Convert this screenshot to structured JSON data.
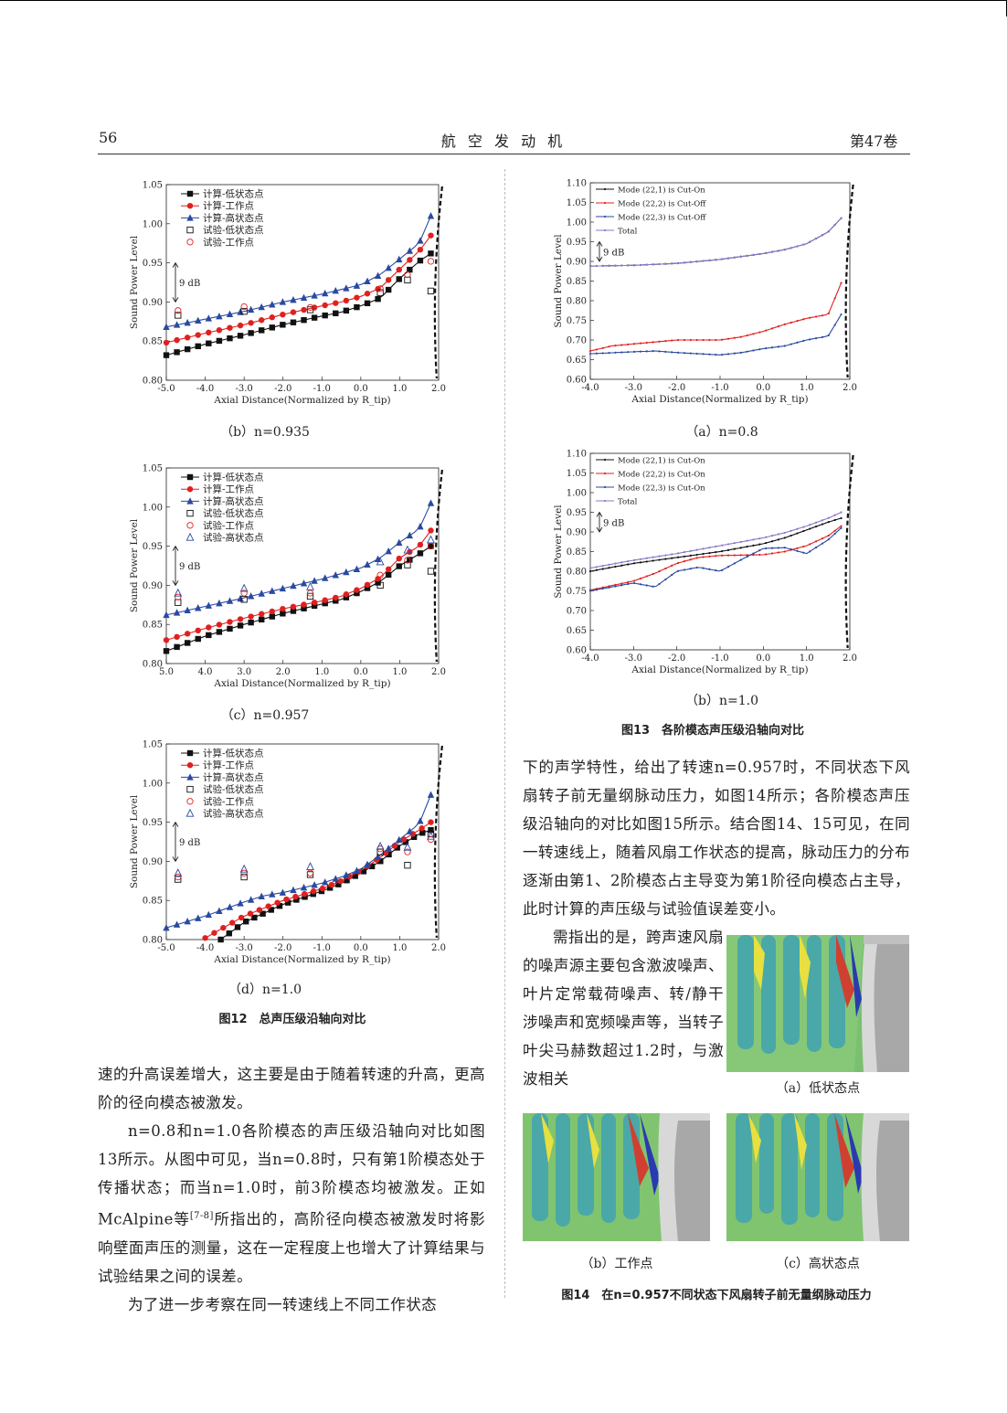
{
  "header": {
    "page_number": "56",
    "journal": "航 空 发 动 机",
    "volume": "第47卷"
  },
  "fig12": {
    "title": "图12　总声压级沿轴向对比",
    "subplots": [
      {
        "caption": "（b）n=0.935",
        "legend": [
          "计算-低状态点",
          "计算-工作点",
          "计算-高状态点",
          "试验-低状态点",
          "试验-工作点"
        ]
      },
      {
        "caption": "（c）n=0.957",
        "legend": [
          "计算-低状态点",
          "计算-工作点",
          "计算-高状态点",
          "试验-低状态点",
          "试验-工作点",
          "试验-高状态点"
        ]
      },
      {
        "caption": "（d）n=1.0",
        "legend": [
          "计算-低状态点",
          "计算-工作点",
          "计算-高状态点",
          "试验-低状态点",
          "试验-工作点",
          "试验-高状态点"
        ]
      }
    ],
    "xlabel": "Axial Distance(Normalized by R_tip)",
    "ylabel": "Sound Power Level",
    "db_note": "9 dB"
  },
  "fig13": {
    "title": "图13　各阶模态声压级沿轴向对比",
    "subplots": [
      {
        "caption": "（a）n=0.8",
        "legend": [
          "Mode (22,1) is Cut-On",
          "Mode (22,2) is Cut-Off",
          "Mode (22,3) is Cut-Off",
          "Total"
        ]
      },
      {
        "caption": "（b）n=1.0",
        "legend": [
          "Mode (22,1) is Cut-On",
          "Mode (22,2) is Cut-On",
          "Mode (22,3) is Cut-On",
          "Total"
        ]
      }
    ],
    "xlabel": "Axial Distance(Normalized by R_tip)",
    "ylabel": "Sound Power Level",
    "db_note": "9 dB"
  },
  "fig14": {
    "title": "图14　在n=0.957不同状态下风扇转子前无量纲脉动压力",
    "panels": [
      "（a）低状态点",
      "（b）工作点",
      "（c）高状态点"
    ]
  },
  "text": {
    "left_1": "速的升高误差增大，这主要是由于随着转速的升高，更高阶的径向模态被激发。",
    "left_2a": "n=0.8和n=1.0各阶模态的声压级沿轴向对比如图13所示。从图中可见，当n=0.8时，只有第1阶模态处于传播状态；而当n=1.0时，前3阶模态均被激发。正如McAlpine等",
    "left_2ref": "[7-8]",
    "left_2b": "所指出的，高阶径向模态被激发时将影响壁面声压的测量，这在一定程度上也增大了计算结果与试验结果之间的误差。",
    "left_3": "为了进一步考察在同一转速线上不同工作状态",
    "right_1": "下的声学特性，给出了转速n=0.957时，不同状态下风扇转子前无量纲脉动压力，如图14所示；各阶模态声压级沿轴向的对比如图15所示。结合图14、15可见，在同一转速线上，随着风扇工作状态的提高，脉动压力的分布逐渐由第1、2阶模态占主导变为第1阶径向模态占主导，此时计算的声压级与试验值误差变小。",
    "right_2": "需指出的是，跨声速风扇的噪声源主要包含激波噪声、叶片定常载荷噪声、转/静干涉噪声和宽频噪声等，当转子叶尖马赫数超过1.2时，与激波相关"
  },
  "colors": {
    "low": "#111111",
    "work": "#e02020",
    "high": "#2a4aa0",
    "total": "#8a78c8"
  },
  "chart_data": [
    {
      "id": "fig12b",
      "type": "line",
      "xlim": [
        -5.0,
        2.0
      ],
      "ylim": [
        0.8,
        1.05
      ],
      "xticks": [
        "-5.0",
        "-4.0",
        "-3.0",
        "-2.0",
        "-1.0",
        "0.0",
        "1.0",
        "2.0"
      ],
      "yticks": [
        "0.80",
        "0.85",
        "0.90",
        "0.95",
        "1.00",
        "1.05"
      ],
      "series": [
        {
          "name": "计算-低状态点",
          "marker": "square",
          "color": "#111111",
          "x": [
            -5.0,
            -4.0,
            -3.0,
            -2.0,
            -1.0,
            -0.5,
            0.0,
            0.5,
            1.0,
            1.5,
            1.8
          ],
          "y": [
            0.832,
            0.846,
            0.858,
            0.871,
            0.882,
            0.887,
            0.895,
            0.905,
            0.93,
            0.952,
            0.962
          ]
        },
        {
          "name": "计算-工作点",
          "marker": "circle",
          "color": "#e02020",
          "x": [
            -5.0,
            -4.0,
            -3.0,
            -2.0,
            -1.0,
            -0.5,
            0.0,
            0.5,
            1.0,
            1.5,
            1.8
          ],
          "y": [
            0.848,
            0.86,
            0.871,
            0.884,
            0.895,
            0.9,
            0.907,
            0.918,
            0.942,
            0.965,
            0.985
          ]
        },
        {
          "name": "计算-高状态点",
          "marker": "triangle",
          "color": "#2a4aa0",
          "x": [
            -5.0,
            -4.0,
            -3.0,
            -2.0,
            -1.0,
            -0.5,
            0.0,
            0.5,
            1.0,
            1.5,
            1.8
          ],
          "y": [
            0.868,
            0.878,
            0.888,
            0.9,
            0.91,
            0.916,
            0.922,
            0.935,
            0.955,
            0.975,
            1.01
          ]
        },
        {
          "name": "试验-低状态点",
          "marker": "open-square",
          "color": "#111111",
          "x": [
            -4.7,
            -3.0,
            -1.3,
            0.5,
            1.2,
            1.8
          ],
          "y": [
            0.883,
            0.888,
            0.89,
            0.912,
            0.928,
            0.914
          ]
        },
        {
          "name": "试验-工作点",
          "marker": "open-circle",
          "color": "#e02020",
          "x": [
            -4.7,
            -3.0,
            -1.3,
            0.5,
            1.2,
            1.8
          ],
          "y": [
            0.889,
            0.894,
            0.893,
            0.917,
            0.935,
            0.952
          ]
        }
      ]
    },
    {
      "id": "fig12c",
      "type": "line",
      "xlim": [
        -5.0,
        2.0
      ],
      "ylim": [
        0.8,
        1.05
      ],
      "xticks": [
        "5.0",
        "4.0",
        "3.0",
        "2.0",
        "1.0",
        "0.0",
        "1.0",
        "2.0"
      ],
      "yticks": [
        "0.80",
        "0.85",
        "0.90",
        "0.95",
        "1.00",
        "1.05"
      ],
      "series": [
        {
          "name": "计算-低状态点",
          "marker": "square",
          "color": "#111111",
          "x": [
            -5.0,
            -4.0,
            -3.0,
            -2.0,
            -1.0,
            -0.5,
            0.0,
            0.5,
            1.0,
            1.5,
            1.8
          ],
          "y": [
            0.816,
            0.835,
            0.85,
            0.864,
            0.876,
            0.882,
            0.892,
            0.905,
            0.925,
            0.94,
            0.95
          ]
        },
        {
          "name": "计算-工作点",
          "marker": "circle",
          "color": "#e02020",
          "x": [
            -5.0,
            -4.0,
            -3.0,
            -2.0,
            -1.0,
            -0.5,
            0.0,
            0.5,
            1.0,
            1.5,
            1.8
          ],
          "y": [
            0.83,
            0.845,
            0.858,
            0.87,
            0.88,
            0.886,
            0.896,
            0.91,
            0.935,
            0.95,
            0.97
          ]
        },
        {
          "name": "计算-高状态点",
          "marker": "triangle",
          "color": "#2a4aa0",
          "x": [
            -5.0,
            -4.0,
            -3.0,
            -2.0,
            -1.0,
            -0.5,
            0.0,
            0.5,
            1.0,
            1.5,
            1.8
          ],
          "y": [
            0.862,
            0.873,
            0.884,
            0.896,
            0.908,
            0.915,
            0.922,
            0.935,
            0.955,
            0.972,
            1.005
          ]
        },
        {
          "name": "试验-低状态点",
          "marker": "open-square",
          "color": "#111111",
          "x": [
            -4.7,
            -3.0,
            -1.3,
            0.5,
            1.2,
            1.8
          ],
          "y": [
            0.878,
            0.882,
            0.886,
            0.9,
            0.926,
            0.918
          ]
        },
        {
          "name": "试验-工作点",
          "marker": "open-circle",
          "color": "#e02020",
          "x": [
            -4.7,
            -3.0,
            -1.3,
            0.5,
            1.2,
            1.8
          ],
          "y": [
            0.885,
            0.89,
            0.89,
            0.913,
            0.932,
            0.95
          ]
        },
        {
          "name": "试验-高状态点",
          "marker": "open-triangle",
          "color": "#2a4aa0",
          "x": [
            -4.7,
            -3.0,
            -1.3,
            0.5,
            1.2,
            1.8
          ],
          "y": [
            0.89,
            0.896,
            0.898,
            0.93,
            0.945,
            0.958
          ]
        }
      ]
    },
    {
      "id": "fig12d",
      "type": "line",
      "xlim": [
        -5.0,
        2.0
      ],
      "ylim": [
        0.8,
        1.05
      ],
      "xticks": [
        "-5.0",
        "-4.0",
        "-3.0",
        "-2.0",
        "-1.0",
        "0.0",
        "1.0",
        "2.0"
      ],
      "yticks": [
        "0.80",
        "0.85",
        "0.90",
        "0.95",
        "1.00",
        "1.05"
      ],
      "series": [
        {
          "name": "计算-低状态点",
          "marker": "square",
          "color": "#111111",
          "x": [
            -3.6,
            -3.0,
            -2.0,
            -1.0,
            -0.5,
            0.0,
            0.5,
            1.0,
            1.5,
            1.8
          ],
          "y": [
            0.8,
            0.822,
            0.845,
            0.862,
            0.872,
            0.885,
            0.9,
            0.92,
            0.935,
            0.94
          ]
        },
        {
          "name": "计算-工作点",
          "marker": "circle",
          "color": "#e02020",
          "x": [
            -4.0,
            -3.0,
            -2.0,
            -1.0,
            -0.5,
            0.0,
            0.5,
            1.0,
            1.5,
            1.8
          ],
          "y": [
            0.802,
            0.83,
            0.85,
            0.865,
            0.875,
            0.888,
            0.905,
            0.925,
            0.94,
            0.95
          ]
        },
        {
          "name": "计算-高状态点",
          "marker": "triangle",
          "color": "#2a4aa0",
          "x": [
            -5.0,
            -4.0,
            -3.0,
            -2.5,
            -2.0,
            -1.0,
            -0.5,
            0.0,
            0.5,
            1.0,
            1.5,
            1.8
          ],
          "y": [
            0.815,
            0.83,
            0.848,
            0.856,
            0.86,
            0.872,
            0.88,
            0.89,
            0.908,
            0.928,
            0.948,
            0.985
          ]
        },
        {
          "name": "试验-低状态点",
          "marker": "open-square",
          "color": "#111111",
          "x": [
            -4.7,
            -3.0,
            -1.3,
            0.5,
            1.2,
            1.8
          ],
          "y": [
            0.877,
            0.88,
            0.883,
            0.912,
            0.895,
            0.935
          ]
        },
        {
          "name": "试验-工作点",
          "marker": "open-circle",
          "color": "#e02020",
          "x": [
            -4.7,
            -3.0,
            -1.3,
            0.5,
            1.2,
            1.8
          ],
          "y": [
            0.88,
            0.885,
            0.885,
            0.916,
            0.912,
            0.928
          ]
        },
        {
          "name": "试验-高状态点",
          "marker": "open-triangle",
          "color": "#2a4aa0",
          "x": [
            -4.7,
            -3.0,
            -1.3,
            0.5,
            1.2,
            1.8
          ],
          "y": [
            0.885,
            0.89,
            0.893,
            0.919,
            0.918,
            0.932
          ]
        }
      ]
    },
    {
      "id": "fig13a",
      "type": "line",
      "xlim": [
        -4.0,
        2.0
      ],
      "ylim": [
        0.6,
        1.1
      ],
      "xticks": [
        "-4.0",
        "-3.0",
        "-2.0",
        "-1.0",
        "0.0",
        "1.0",
        "2.0"
      ],
      "yticks": [
        "0.60",
        "0.65",
        "0.70",
        "0.75",
        "0.80",
        "0.85",
        "0.90",
        "0.95",
        "1.00",
        "1.05",
        "1.10"
      ],
      "series": [
        {
          "name": "Mode (22,1) is Cut-On",
          "color": "#111111",
          "x": [
            -4.0,
            -3.0,
            -2.0,
            -1.0,
            0.0,
            0.5,
            1.0,
            1.5,
            1.8
          ],
          "y": [
            0.888,
            0.89,
            0.895,
            0.905,
            0.92,
            0.93,
            0.945,
            0.975,
            1.01
          ]
        },
        {
          "name": "Mode (22,2) is Cut-Off",
          "color": "#e02020",
          "x": [
            -4.0,
            -3.5,
            -3.0,
            -2.0,
            -1.0,
            -0.5,
            0.0,
            0.5,
            1.0,
            1.5,
            1.8
          ],
          "y": [
            0.672,
            0.685,
            0.69,
            0.7,
            0.7,
            0.708,
            0.722,
            0.74,
            0.755,
            0.765,
            0.845
          ]
        },
        {
          "name": "Mode (22,3) is Cut-Off",
          "color": "#2a4aa0",
          "x": [
            -4.0,
            -3.0,
            -2.5,
            -2.0,
            -1.0,
            -0.5,
            0.0,
            0.5,
            1.0,
            1.5,
            1.8
          ],
          "y": [
            0.665,
            0.67,
            0.672,
            0.668,
            0.662,
            0.668,
            0.678,
            0.685,
            0.7,
            0.71,
            0.765
          ]
        },
        {
          "name": "Total",
          "color": "#8a78c8",
          "x": [
            -4.0,
            -3.0,
            -2.0,
            -1.0,
            0.0,
            0.5,
            1.0,
            1.5,
            1.8
          ],
          "y": [
            0.888,
            0.89,
            0.895,
            0.905,
            0.92,
            0.93,
            0.945,
            0.975,
            1.01
          ]
        }
      ]
    },
    {
      "id": "fig13b",
      "type": "line",
      "xlim": [
        -4.0,
        2.0
      ],
      "ylim": [
        0.6,
        1.1
      ],
      "xticks": [
        "-4.0",
        "-3.0",
        "-2.0",
        "-1.0",
        "0.0",
        "1.0",
        "2.0"
      ],
      "yticks": [
        "0.60",
        "0.65",
        "0.70",
        "0.75",
        "0.80",
        "0.85",
        "0.90",
        "0.95",
        "1.00",
        "1.05",
        "1.10"
      ],
      "series": [
        {
          "name": "Mode (22,1) is Cut-On",
          "color": "#111111",
          "x": [
            -4.0,
            -3.0,
            -2.0,
            -1.0,
            0.0,
            0.5,
            1.0,
            1.5,
            1.8
          ],
          "y": [
            0.8,
            0.82,
            0.835,
            0.85,
            0.87,
            0.885,
            0.905,
            0.925,
            0.935
          ]
        },
        {
          "name": "Mode (22,2) is Cut-On",
          "color": "#e02020",
          "x": [
            -4.0,
            -3.0,
            -2.5,
            -2.0,
            -1.5,
            -1.0,
            0.0,
            0.5,
            1.0,
            1.5,
            1.8
          ],
          "y": [
            0.752,
            0.775,
            0.795,
            0.82,
            0.835,
            0.84,
            0.842,
            0.85,
            0.865,
            0.89,
            0.915
          ]
        },
        {
          "name": "Mode (22,3) is Cut-On",
          "color": "#2a4aa0",
          "x": [
            -4.0,
            -3.0,
            -2.5,
            -2.0,
            -1.5,
            -1.0,
            -0.5,
            0.0,
            0.5,
            1.0,
            1.5,
            1.8
          ],
          "y": [
            0.75,
            0.77,
            0.76,
            0.8,
            0.81,
            0.8,
            0.83,
            0.858,
            0.86,
            0.845,
            0.88,
            0.91
          ]
        },
        {
          "name": "Total",
          "color": "#8a78c8",
          "x": [
            -4.0,
            -3.0,
            -2.0,
            -1.0,
            0.0,
            0.5,
            1.0,
            1.5,
            1.8
          ],
          "y": [
            0.808,
            0.828,
            0.845,
            0.865,
            0.885,
            0.898,
            0.915,
            0.935,
            0.95
          ]
        }
      ]
    }
  ]
}
